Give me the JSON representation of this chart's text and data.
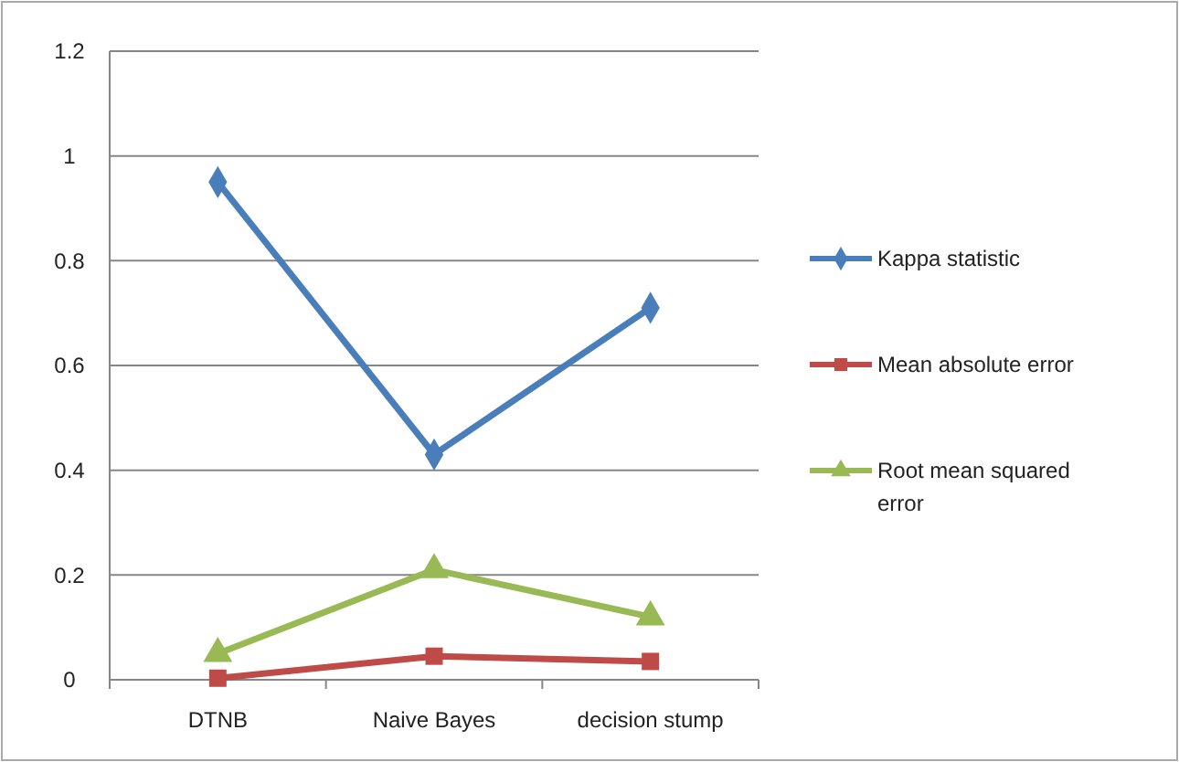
{
  "chart_data": {
    "type": "line",
    "categories": [
      "DTNB",
      "Naive Bayes",
      "decision stump"
    ],
    "series": [
      {
        "name": "Kappa statistic",
        "color": "#4a7ebb",
        "marker": "diamond",
        "values": [
          0.95,
          0.43,
          0.71
        ]
      },
      {
        "name": "Mean absolute error",
        "color": "#be4b48",
        "marker": "square",
        "values": [
          0.003,
          0.045,
          0.035
        ]
      },
      {
        "name": "Root mean squared error",
        "color": "#98b954",
        "marker": "triangle",
        "values": [
          0.05,
          0.21,
          0.12
        ]
      }
    ],
    "ylim": [
      0,
      1.2
    ],
    "yticks": [
      0,
      0.2,
      0.4,
      0.6,
      0.8,
      1,
      1.2
    ],
    "grid": "y",
    "legend": "right"
  }
}
